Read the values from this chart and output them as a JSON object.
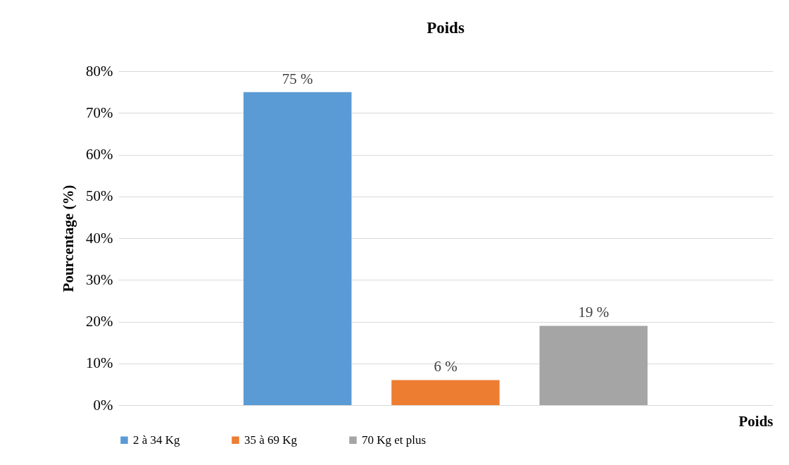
{
  "chart_data": {
    "type": "bar",
    "title": "Poids",
    "xlabel": "Poids",
    "ylabel": "Pourcentage (%)",
    "categories": [
      null
    ],
    "series": [
      {
        "name": "2 à 34 Kg",
        "color": "#5b9bd5",
        "values": [
          75
        ],
        "value_labels": [
          "75 %"
        ]
      },
      {
        "name": "35 à 69 Kg",
        "color": "#ed7d31",
        "values": [
          6
        ],
        "value_labels": [
          "6 %"
        ]
      },
      {
        "name": "70 Kg et plus",
        "color": "#a5a5a5",
        "values": [
          19
        ],
        "value_labels": [
          "19 %"
        ]
      }
    ],
    "ylim": [
      0,
      80
    ],
    "yticks": [
      {
        "value": 0,
        "label": "0%"
      },
      {
        "value": 10,
        "label": "10%"
      },
      {
        "value": 20,
        "label": "20%"
      },
      {
        "value": 30,
        "label": "30%"
      },
      {
        "value": 40,
        "label": "40%"
      },
      {
        "value": 50,
        "label": "50%"
      },
      {
        "value": 60,
        "label": "60%"
      },
      {
        "value": 70,
        "label": "70%"
      },
      {
        "value": 80,
        "label": "80%"
      }
    ],
    "grid": "y",
    "legend": "bottom"
  }
}
